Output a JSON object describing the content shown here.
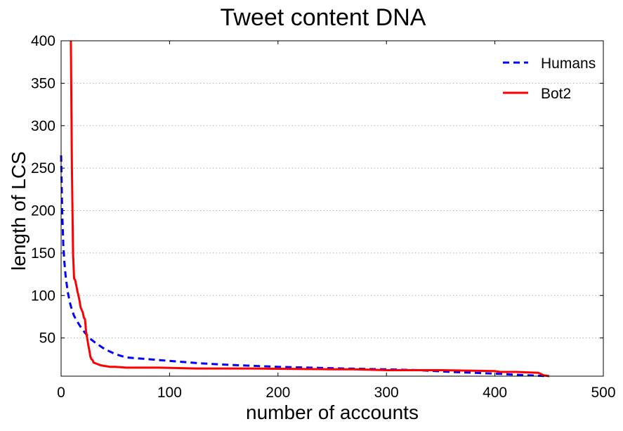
{
  "chart_data": {
    "type": "line",
    "title": "Tweet content DNA",
    "xlabel": "number of accounts",
    "ylabel": "length of LCS",
    "xlim": [
      0,
      500
    ],
    "ylim": [
      5,
      400
    ],
    "xticks": [
      0,
      100,
      200,
      300,
      400,
      500
    ],
    "xtick_labels": [
      "0",
      "100",
      "200",
      "300",
      "400",
      "500"
    ],
    "yticks": [
      50,
      100,
      150,
      200,
      250,
      300,
      350,
      400
    ],
    "ytick_labels": [
      "50",
      "100",
      "150",
      "200",
      "250",
      "300",
      "350",
      "400"
    ],
    "grid": "horizontal dotted",
    "legend_position": "top-right",
    "series": [
      {
        "name": "Humans",
        "color": "#0000ff",
        "style": "dashed",
        "x": [
          0,
          1,
          2,
          3,
          4,
          5,
          6,
          8,
          10,
          12,
          15,
          18,
          22,
          27,
          32,
          40,
          50,
          60,
          80,
          100,
          130,
          160,
          200,
          230,
          260,
          300,
          330,
          360,
          400,
          430,
          450
        ],
        "y": [
          265,
          200,
          160,
          140,
          125,
          115,
          105,
          92,
          83,
          76,
          69,
          63,
          56,
          49,
          44,
          37,
          31,
          27,
          25,
          23,
          20,
          18,
          16,
          15,
          14,
          13,
          12,
          10,
          8,
          6,
          5
        ]
      },
      {
        "name": "Bot2",
        "color": "#ff0000",
        "style": "solid",
        "x": [
          9,
          10,
          11,
          12,
          13,
          14,
          15,
          16,
          17,
          18,
          19,
          20,
          21,
          22,
          23,
          24,
          25,
          26,
          27,
          28,
          29,
          30,
          32,
          34,
          36,
          40,
          45,
          50,
          60,
          90,
          125,
          175,
          255,
          270,
          300,
          350,
          400,
          405,
          420,
          440,
          445,
          450
        ],
        "y": [
          400,
          250,
          150,
          120,
          118,
          112,
          105,
          100,
          94,
          86,
          83,
          80,
          74,
          72,
          58,
          50,
          42,
          36,
          28,
          25,
          24,
          21,
          20,
          19,
          18,
          17,
          16,
          16,
          15,
          15,
          14,
          14,
          13,
          13,
          12,
          12,
          11,
          10,
          10,
          9,
          6,
          5
        ]
      }
    ]
  }
}
